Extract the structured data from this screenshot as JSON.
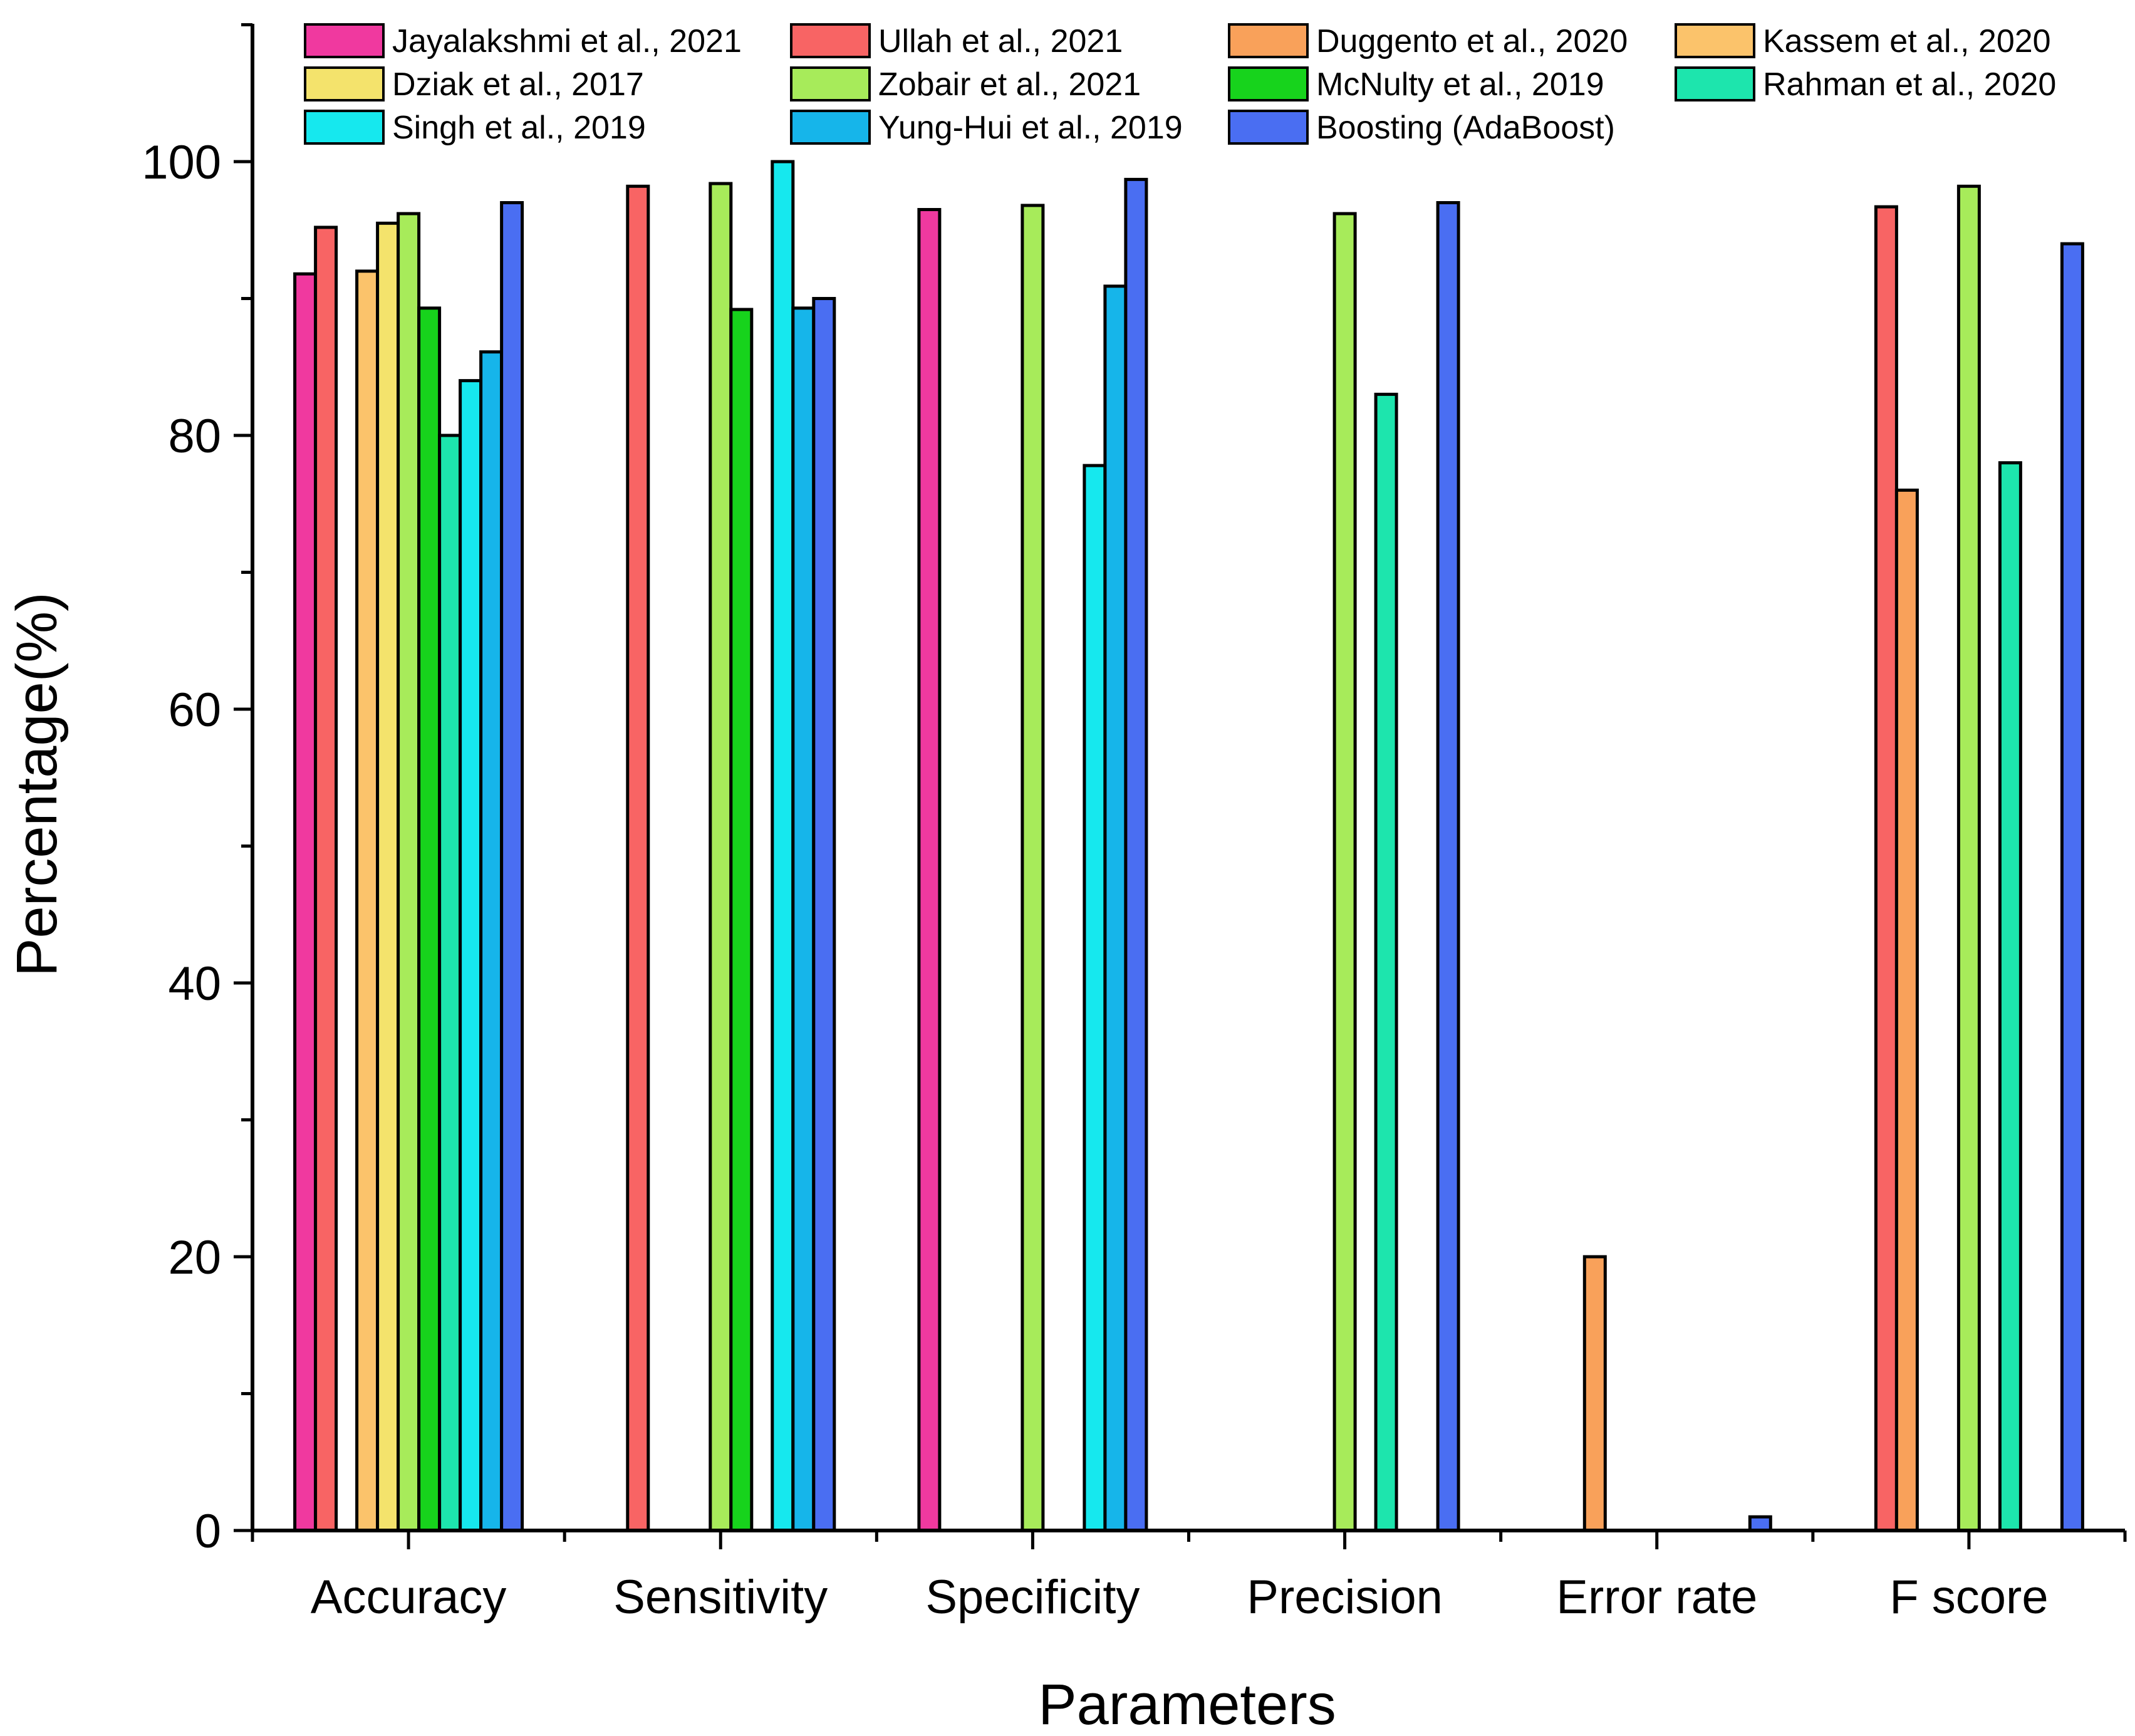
{
  "chart_data": {
    "type": "bar",
    "title": "",
    "xlabel": "Parameters",
    "ylabel": "Percentage(%)",
    "ylim": [
      0,
      110
    ],
    "yticks": [
      0,
      20,
      40,
      60,
      80,
      100
    ],
    "grid": false,
    "legend_position": "top",
    "categories": [
      "Accuracy",
      "Sensitivity",
      "Specificity",
      "Precision",
      "Error rate",
      "F score"
    ],
    "series": [
      {
        "name": "Jayalakshmi et al., 2021",
        "color": "#f0399f",
        "values": [
          91.8,
          null,
          96.5,
          null,
          null,
          null
        ]
      },
      {
        "name": "Ullah et al., 2021",
        "color": "#f86464",
        "values": [
          95.2,
          98.2,
          null,
          null,
          null,
          96.7
        ]
      },
      {
        "name": "Duggento et al., 2020",
        "color": "#f9a15a",
        "values": [
          null,
          null,
          null,
          null,
          20.0,
          76.0
        ]
      },
      {
        "name": "Kassem et al., 2020",
        "color": "#fbc36b",
        "values": [
          92.0,
          null,
          null,
          null,
          null,
          null
        ]
      },
      {
        "name": "Dziak et al., 2017",
        "color": "#f4e36c",
        "values": [
          95.5,
          null,
          null,
          null,
          null,
          null
        ]
      },
      {
        "name": "Zobair et al., 2021",
        "color": "#a7eb5a",
        "values": [
          96.2,
          98.4,
          96.8,
          96.2,
          null,
          98.2
        ]
      },
      {
        "name": "McNulty et al., 2019",
        "color": "#17d31c",
        "values": [
          89.3,
          89.2,
          null,
          null,
          null,
          null
        ]
      },
      {
        "name": "Rahman et al., 2020",
        "color": "#1de5ad",
        "values": [
          80.0,
          null,
          null,
          83.0,
          null,
          78.0
        ]
      },
      {
        "name": "Singh et al., 2019",
        "color": "#16e8ee",
        "values": [
          84.0,
          100.0,
          77.8,
          null,
          null,
          null
        ]
      },
      {
        "name": "Yung-Hui et al., 2019",
        "color": "#16b5ea",
        "values": [
          86.1,
          89.3,
          90.9,
          null,
          null,
          null
        ]
      },
      {
        "name": "Boosting (AdaBoost)",
        "color": "#4a6ef2",
        "values": [
          97.0,
          90.0,
          98.7,
          97.0,
          1.0,
          94.0
        ]
      }
    ]
  }
}
